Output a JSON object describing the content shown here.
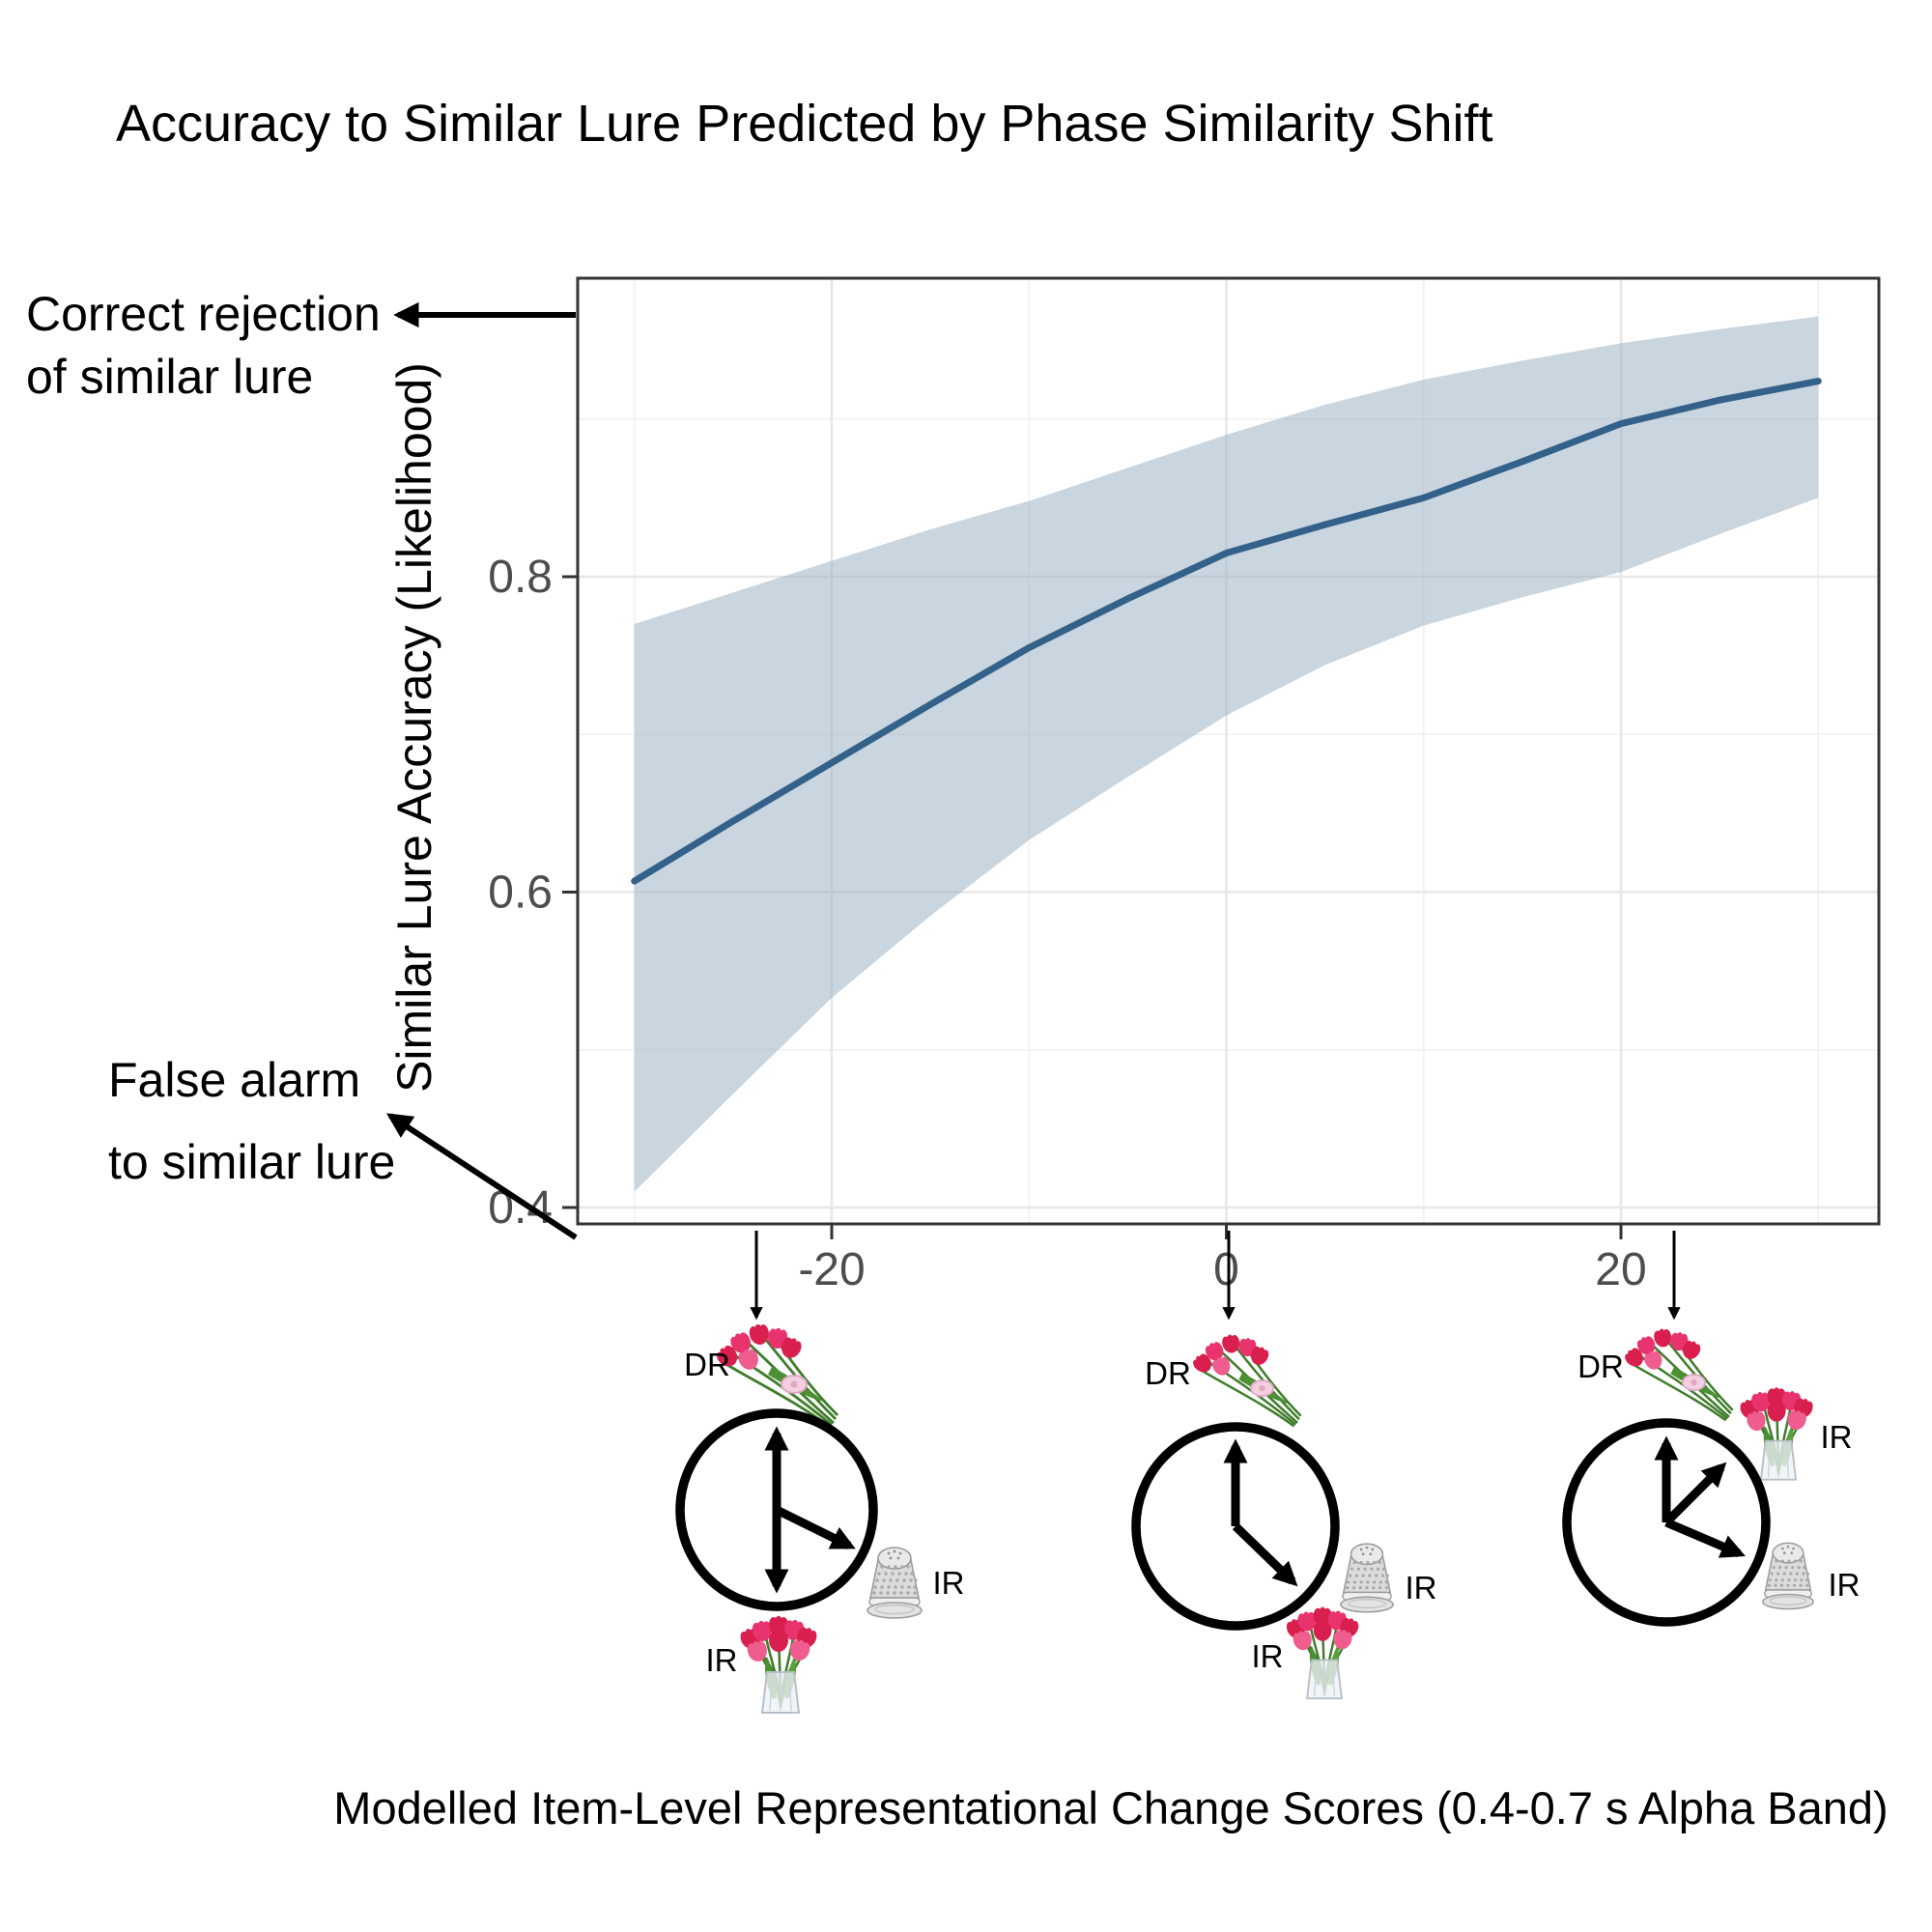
{
  "title": "Accuracy to Similar Lure Predicted by Phase Similarity Shift",
  "y_axis": {
    "label": "Similar Lure Accuracy (Likelihood)"
  },
  "x_axis": {
    "label": "Modelled Item-Level Representational Change Scores (0.4-0.7 s Alpha Band)"
  },
  "annotations": {
    "correct_rejection": {
      "line1": "Correct rejection",
      "line2": "of similar lure"
    },
    "false_alarm": {
      "line1": "False alarm",
      "line2": "to similar lure"
    }
  },
  "clocks": {
    "left": {
      "dr_label": "DR",
      "ir_thimble_label": "IR",
      "ir_bouquet_label": "IR"
    },
    "middle": {
      "dr_label": "DR",
      "ir_thimble_label": "IR",
      "ir_bouquet_label": "IR"
    },
    "right": {
      "dr_label": "DR",
      "ir_bouquet_label": "IR",
      "ir_thimble_label": "IR"
    }
  },
  "chart_data": {
    "type": "line",
    "title": "Accuracy to Similar Lure Predicted by Phase Similarity Shift",
    "xlabel": "Modelled Item-Level Representational Change Scores (0.4-0.7 s Alpha Band)",
    "ylabel": "Similar Lure Accuracy (Likelihood)",
    "x_ticks_major": [
      -20,
      0,
      20
    ],
    "x_ticks_minor": [
      -30,
      -10,
      10,
      30
    ],
    "y_ticks_major": [
      0.4,
      0.6,
      0.8
    ],
    "y_ticks_minor": [
      0.5,
      0.7,
      0.9
    ],
    "xlim": [
      -33,
      33
    ],
    "ylim": [
      0.39,
      0.99
    ],
    "grid": true,
    "legend": "none",
    "series": [
      {
        "name": "Model fit with 95% CI ribbon",
        "x": [
          -30,
          -25,
          -20,
          -15,
          -10,
          -5,
          0,
          5,
          10,
          15,
          20,
          25,
          30
        ],
        "y": [
          0.607,
          0.645,
          0.682,
          0.719,
          0.755,
          0.786,
          0.815,
          0.833,
          0.85,
          0.873,
          0.897,
          0.912,
          0.924
        ],
        "ci_upper": [
          0.77,
          0.79,
          0.81,
          0.83,
          0.848,
          0.869,
          0.89,
          0.909,
          0.925,
          0.937,
          0.948,
          0.957,
          0.965
        ],
        "ci_lower": [
          0.41,
          0.472,
          0.533,
          0.585,
          0.633,
          0.673,
          0.712,
          0.744,
          0.769,
          0.787,
          0.803,
          0.827,
          0.85
        ]
      }
    ]
  },
  "colors": {
    "fit_line": "#336189",
    "ci_ribbon": "#93abbf",
    "grid_major": "#e7e7e7",
    "grid_minor": "#f2f2f2",
    "panel_border": "#333333",
    "tick_text": "#4d4d4d",
    "tulip_red": "#d81f4e",
    "tulip_pink": "#e8336e",
    "stem_green": "#3f7d2c",
    "thimble_silver": "#d9d9d9"
  }
}
